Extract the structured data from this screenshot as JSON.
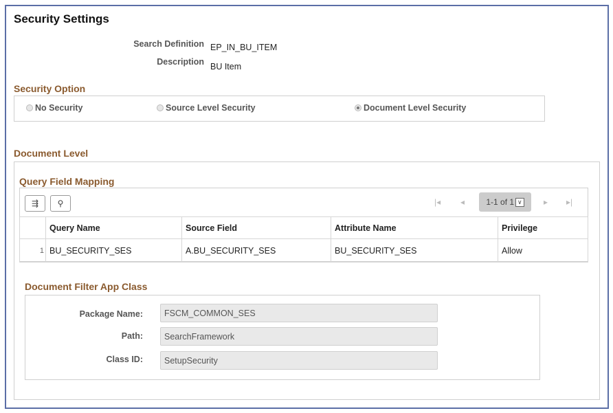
{
  "title": "Security Settings",
  "search_definition": {
    "label": "Search Definition",
    "value": "EP_IN_BU_ITEM"
  },
  "description": {
    "label": "Description",
    "value": "BU Item"
  },
  "security_option": {
    "header": "Security Option",
    "options": [
      {
        "label": "No Security",
        "selected": false
      },
      {
        "label": "Source Level Security",
        "selected": false
      },
      {
        "label": "Document Level Security",
        "selected": true
      }
    ]
  },
  "document_level": {
    "header": "Document Level"
  },
  "query_field_mapping": {
    "header": "Query Field Mapping",
    "pagination": "1-1 of 1",
    "columns": [
      "Query Name",
      "Source Field",
      "Attribute Name",
      "Privilege"
    ],
    "rows": [
      {
        "num": "1",
        "cells": [
          "BU_SECURITY_SES",
          "A.BU_SECURITY_SES",
          "BU_SECURITY_SES",
          "Allow"
        ]
      }
    ]
  },
  "filter_app_class": {
    "header": "Document Filter App Class",
    "fields": [
      {
        "label": "Package Name:",
        "value": "FSCM_COMMON_SES"
      },
      {
        "label": "Path:",
        "value": "SearchFramework"
      },
      {
        "label": "Class ID:",
        "value": "SetupSecurity"
      }
    ]
  },
  "colors": {
    "frame": "#5b6ea6",
    "section_header": "#8a5a2e"
  }
}
